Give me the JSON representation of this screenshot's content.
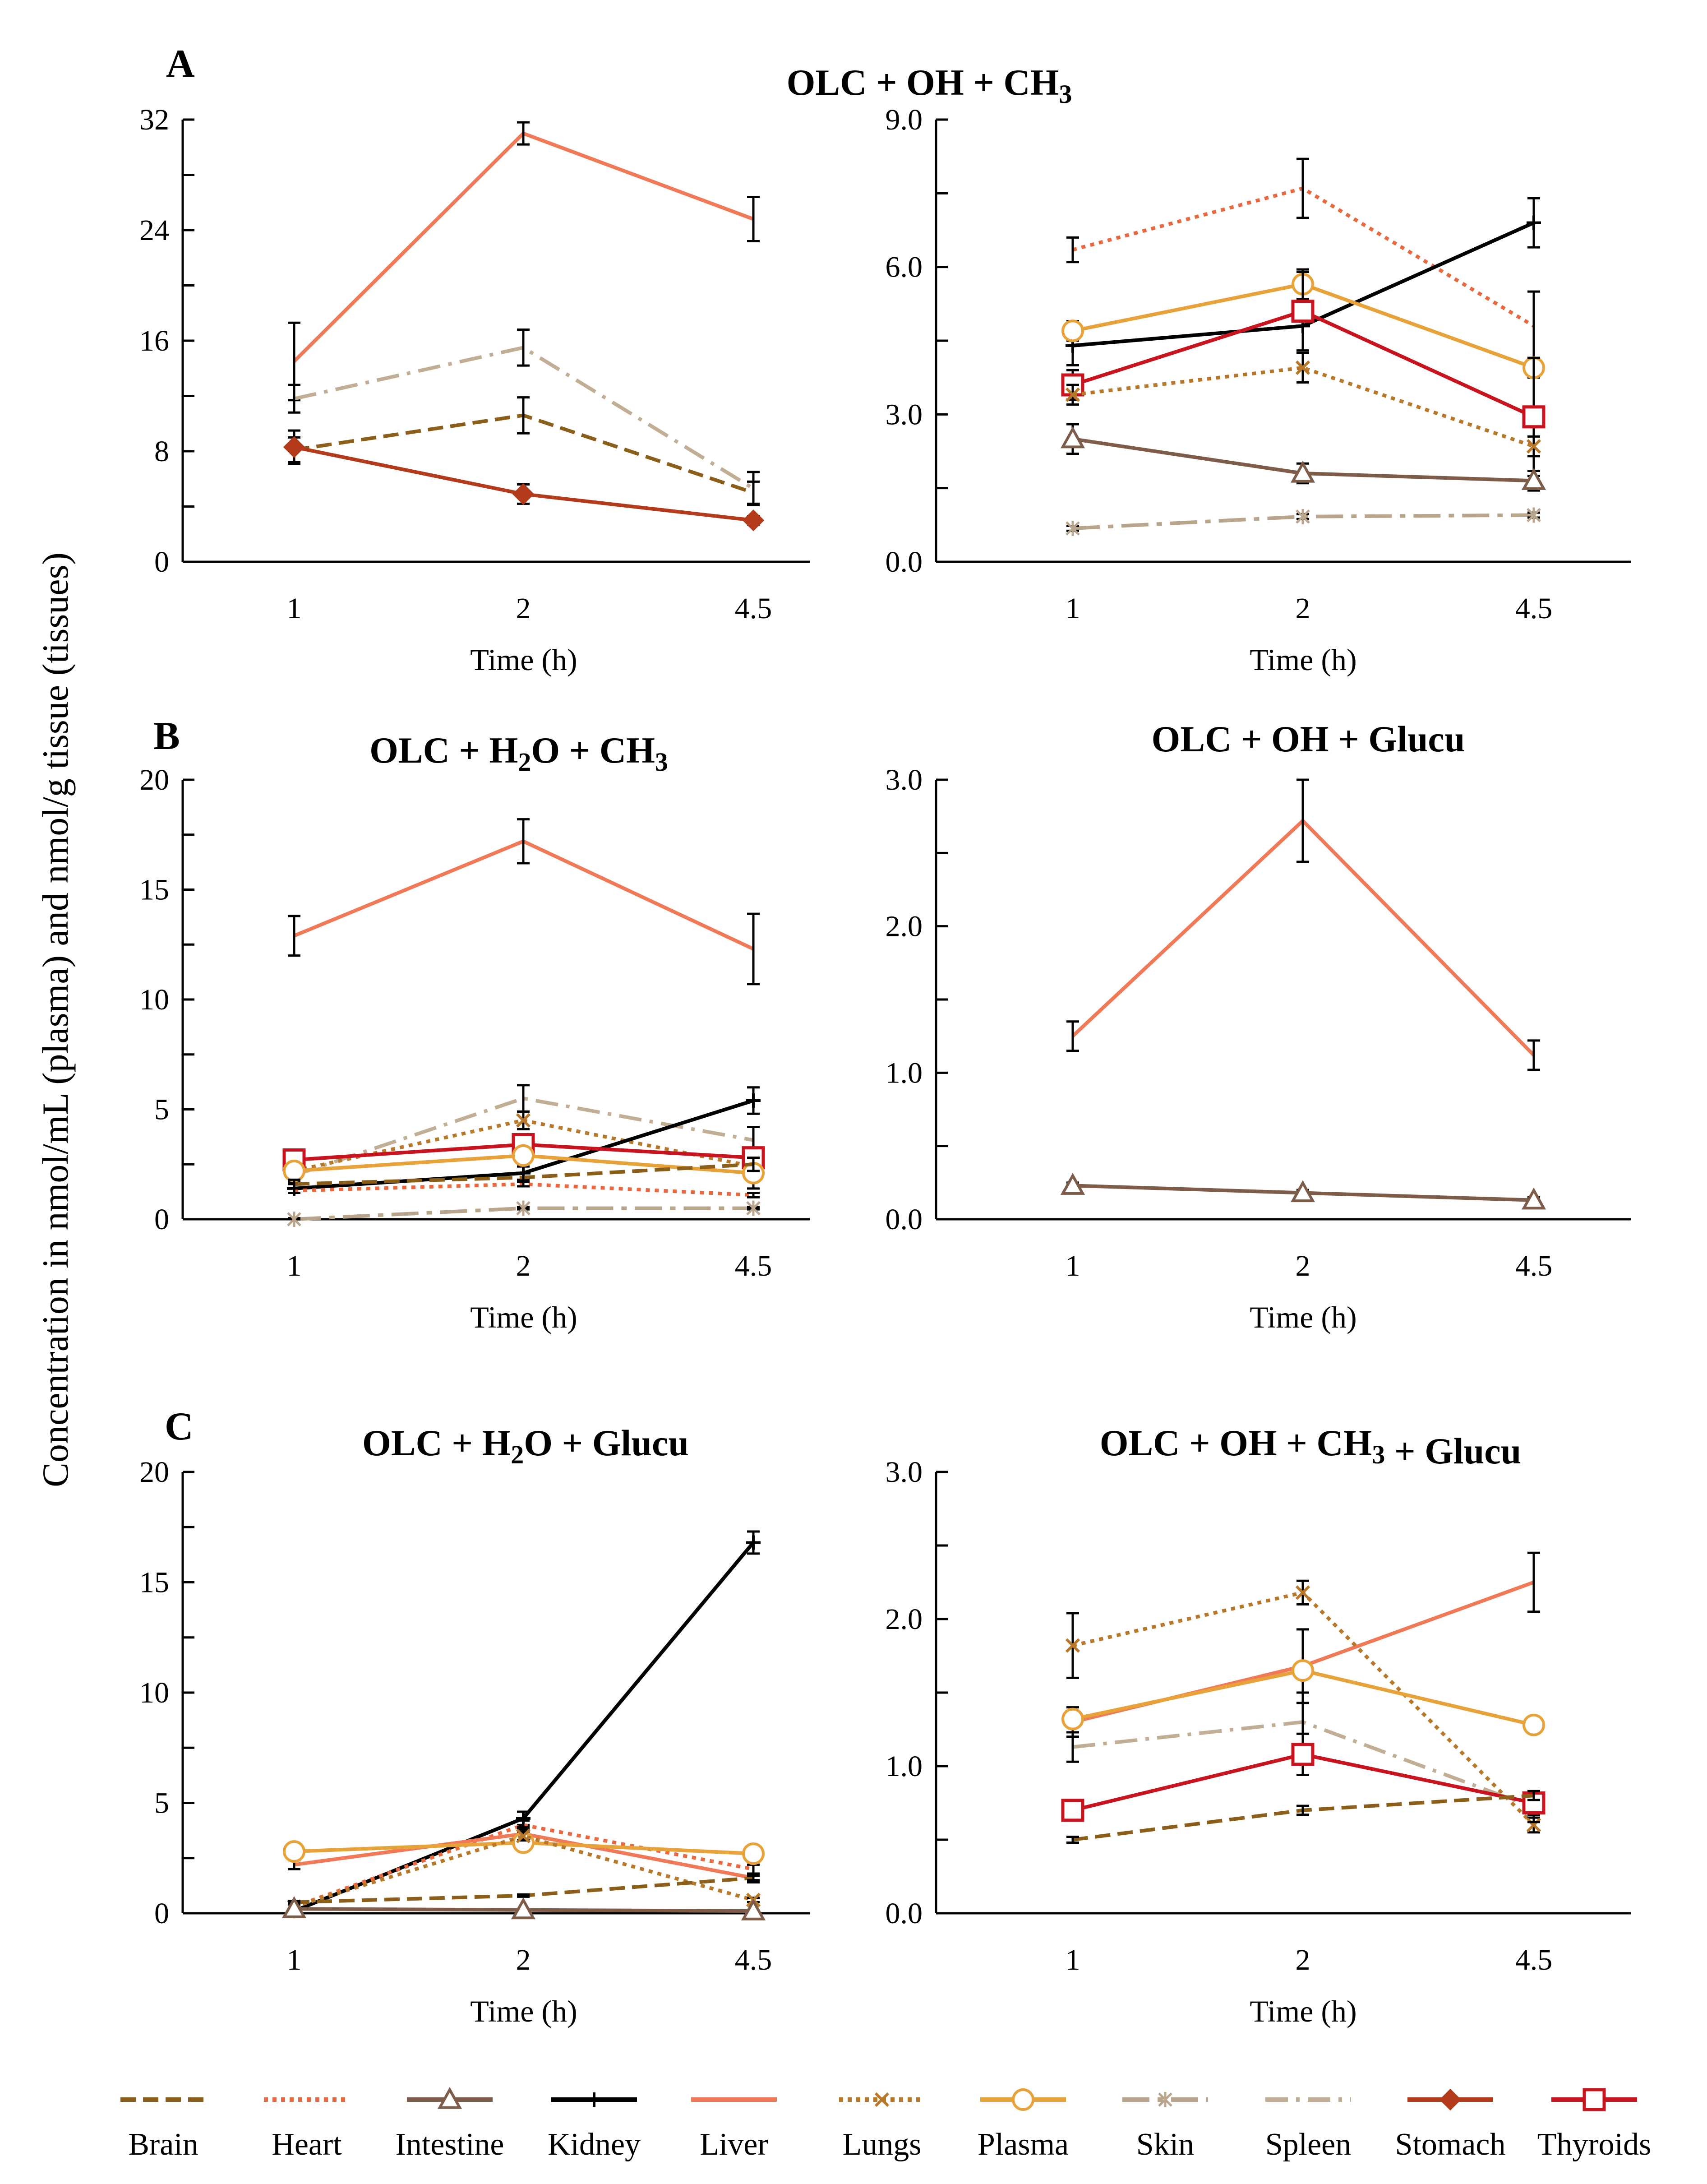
{
  "figure": {
    "ylabel": "Concentration in nmol/mL (plasma) and nmol/g tissue (tissues)",
    "panel_letters": [
      "A",
      "B",
      "C"
    ],
    "title_a": "OLC + OH + CH3"
  },
  "legend": [
    {
      "name": "Brain",
      "color": "#8B5E1A",
      "style": "dashed",
      "marker": "none"
    },
    {
      "name": "Heart",
      "color": "#E8683F",
      "style": "dotted",
      "marker": "none"
    },
    {
      "name": "Intestine",
      "color": "#7D5C4A",
      "style": "solid",
      "marker": "triangle"
    },
    {
      "name": "Kidney",
      "color": "#000000",
      "style": "solid",
      "marker": "plus"
    },
    {
      "name": "Liver",
      "color": "#F07A57",
      "style": "solid",
      "marker": "none"
    },
    {
      "name": "Lungs",
      "color": "#B8782A",
      "style": "dotted",
      "marker": "x"
    },
    {
      "name": "Plasma",
      "color": "#E8A23A",
      "style": "solid",
      "marker": "circle"
    },
    {
      "name": "Skin",
      "color": "#B8A58C",
      "style": "longdash",
      "marker": "star"
    },
    {
      "name": "Spleen",
      "color": "#C2AE94",
      "style": "dashdot",
      "marker": "none"
    },
    {
      "name": "Stomach",
      "color": "#B33A1A",
      "style": "solid",
      "marker": "diamond"
    },
    {
      "name": "Thyroids",
      "color": "#C8141E",
      "style": "solid",
      "marker": "square"
    }
  ],
  "chart_data": [
    {
      "id": "a-left",
      "type": "line",
      "title": "",
      "categories": [
        "1",
        "2",
        "4.5"
      ],
      "xlabel": "Time (h)",
      "ylabel": "",
      "ylim": [
        0,
        32
      ],
      "yticks": [
        "0",
        "8",
        "16",
        "24",
        "32"
      ],
      "series": [
        {
          "name": "Liver",
          "values": [
            14.5,
            31.0,
            24.8
          ],
          "err": [
            2.8,
            0.8,
            1.6
          ]
        },
        {
          "name": "Spleen",
          "values": [
            11.8,
            15.5,
            5.3
          ],
          "err": [
            1.0,
            1.3,
            1.2
          ]
        },
        {
          "name": "Brain",
          "values": [
            8.1,
            10.6,
            5.0
          ],
          "err": [
            0.9,
            1.3,
            0.8
          ]
        },
        {
          "name": "Stomach",
          "values": [
            8.3,
            4.9,
            3.0
          ],
          "err": [
            1.2,
            0.7,
            0.3
          ]
        }
      ]
    },
    {
      "id": "a-right",
      "type": "line",
      "title": "OLC + OH + CH3",
      "categories": [
        "1",
        "2",
        "4.5"
      ],
      "xlabel": "Time (h)",
      "ylabel": "",
      "ylim": [
        0,
        9
      ],
      "yticks": [
        "0.0",
        "3.0",
        "6.0",
        "9.0"
      ],
      "series": [
        {
          "name": "Heart",
          "values": [
            6.35,
            7.6,
            4.8
          ],
          "err": [
            0.25,
            0.6,
            0.7
          ]
        },
        {
          "name": "Kidney",
          "values": [
            4.4,
            4.8,
            6.9
          ],
          "err": [
            0.4,
            0.5,
            0.5
          ]
        },
        {
          "name": "Plasma",
          "values": [
            4.7,
            5.65,
            3.95
          ],
          "err": [
            0.2,
            0.3,
            0.2
          ]
        },
        {
          "name": "Thyroids",
          "values": [
            3.6,
            5.1,
            2.95
          ],
          "err": [
            0.3,
            0.8,
            1.2
          ]
        },
        {
          "name": "Lungs",
          "values": [
            3.4,
            3.95,
            2.35
          ],
          "err": [
            0.2,
            0.3,
            0.2
          ]
        },
        {
          "name": "Intestine",
          "values": [
            2.5,
            1.8,
            1.65
          ],
          "err": [
            0.3,
            0.2,
            0.2
          ]
        },
        {
          "name": "Skin",
          "values": [
            0.68,
            0.92,
            0.95
          ],
          "err": [
            0.05,
            0.05,
            0.05
          ]
        }
      ]
    },
    {
      "id": "b-left",
      "type": "line",
      "title": "OLC + H2O + CH3",
      "categories": [
        "1",
        "2",
        "4.5"
      ],
      "xlabel": "Time (h)",
      "ylabel": "",
      "ylim": [
        0,
        20
      ],
      "yticks": [
        "0",
        "5",
        "10",
        "15",
        "20"
      ],
      "series": [
        {
          "name": "Liver",
          "values": [
            12.9,
            17.2,
            12.3
          ],
          "err": [
            0.9,
            1.0,
            1.6
          ]
        },
        {
          "name": "Spleen",
          "values": [
            2.0,
            5.5,
            3.6
          ],
          "err": [
            0.3,
            0.6,
            0.6
          ]
        },
        {
          "name": "Lungs",
          "values": [
            2.2,
            4.5,
            2.4
          ],
          "err": [
            0.2,
            0.4,
            0.3
          ]
        },
        {
          "name": "Kidney",
          "values": [
            1.4,
            2.1,
            5.4
          ],
          "err": [
            0.2,
            0.3,
            0.6
          ]
        },
        {
          "name": "Thyroids",
          "values": [
            2.7,
            3.4,
            2.8
          ],
          "err": [
            0.2,
            0.3,
            1.4
          ]
        },
        {
          "name": "Plasma",
          "values": [
            2.2,
            2.9,
            2.1
          ],
          "err": [
            0.2,
            0.2,
            0.2
          ]
        },
        {
          "name": "Brain",
          "values": [
            1.6,
            1.9,
            2.5
          ],
          "err": [
            0.2,
            0.2,
            0.3
          ]
        },
        {
          "name": "Heart",
          "values": [
            1.3,
            1.6,
            1.1
          ],
          "err": [
            0.1,
            0.1,
            0.1
          ]
        },
        {
          "name": "Skin",
          "values": [
            0.0,
            0.5,
            0.5
          ],
          "err": [
            0.05,
            0.05,
            0.05
          ]
        }
      ]
    },
    {
      "id": "b-right",
      "type": "line",
      "title": "OLC + OH + Glucu",
      "categories": [
        "1",
        "2",
        "4.5"
      ],
      "xlabel": "Time (h)",
      "ylabel": "",
      "ylim": [
        0,
        3
      ],
      "yticks": [
        "0.0",
        "1.0",
        "2.0",
        "3.0"
      ],
      "series": [
        {
          "name": "Liver",
          "values": [
            1.25,
            2.72,
            1.12
          ],
          "err": [
            0.1,
            0.28,
            0.1
          ]
        },
        {
          "name": "Intestine",
          "values": [
            0.23,
            0.18,
            0.13
          ],
          "err": [
            0.02,
            0.02,
            0.02
          ]
        }
      ]
    },
    {
      "id": "c-left",
      "type": "line",
      "title": "OLC + H2O + Glucu",
      "categories": [
        "1",
        "2",
        "4.5"
      ],
      "xlabel": "Time (h)",
      "ylabel": "",
      "ylim": [
        0,
        20
      ],
      "yticks": [
        "0",
        "5",
        "10",
        "15",
        "20"
      ],
      "series": [
        {
          "name": "Kidney",
          "values": [
            0.1,
            4.3,
            16.8
          ],
          "err": [
            0.1,
            0.3,
            0.5
          ]
        },
        {
          "name": "Heart",
          "values": [
            0.3,
            4.0,
            2.0
          ],
          "err": [
            0.1,
            0.2,
            0.2
          ]
        },
        {
          "name": "Liver",
          "values": [
            2.2,
            3.6,
            1.6
          ],
          "err": [
            0.2,
            0.3,
            0.2
          ]
        },
        {
          "name": "Plasma",
          "values": [
            2.8,
            3.2,
            2.7
          ],
          "err": [
            0.1,
            0.1,
            0.1
          ]
        },
        {
          "name": "Lungs",
          "values": [
            0.3,
            3.5,
            0.6
          ],
          "err": [
            0.1,
            0.2,
            0.1
          ]
        },
        {
          "name": "Brain",
          "values": [
            0.5,
            0.8,
            1.6
          ],
          "err": [
            0.05,
            0.05,
            0.1
          ]
        },
        {
          "name": "Intestine",
          "values": [
            0.2,
            0.15,
            0.1
          ],
          "err": [
            0.02,
            0.02,
            0.02
          ]
        }
      ]
    },
    {
      "id": "c-right",
      "type": "line",
      "title": "OLC + OH + CH3 + Glucu",
      "categories": [
        "1",
        "2",
        "4.5"
      ],
      "xlabel": "Time (h)",
      "ylabel": "",
      "ylim": [
        0,
        3
      ],
      "yticks": [
        "0.0",
        "1.0",
        "2.0",
        "3.0"
      ],
      "series": [
        {
          "name": "Liver",
          "values": [
            1.3,
            1.68,
            2.25
          ],
          "err": [
            0.1,
            0.25,
            0.2
          ]
        },
        {
          "name": "Lungs",
          "values": [
            1.82,
            2.18,
            0.6
          ],
          "err": [
            0.22,
            0.08,
            0.05
          ]
        },
        {
          "name": "Plasma",
          "values": [
            1.32,
            1.65,
            1.28
          ],
          "err": [
            0.05,
            0.05,
            0.04
          ]
        },
        {
          "name": "Spleen",
          "values": [
            1.13,
            1.3,
            0.72
          ],
          "err": [
            0.1,
            0.2,
            0.1
          ]
        },
        {
          "name": "Thyroids",
          "values": [
            0.7,
            1.08,
            0.75
          ],
          "err": [
            0.05,
            0.14,
            0.08
          ]
        },
        {
          "name": "Brain",
          "values": [
            0.5,
            0.7,
            0.8
          ],
          "err": [
            0.02,
            0.03,
            0.03
          ]
        }
      ]
    }
  ]
}
